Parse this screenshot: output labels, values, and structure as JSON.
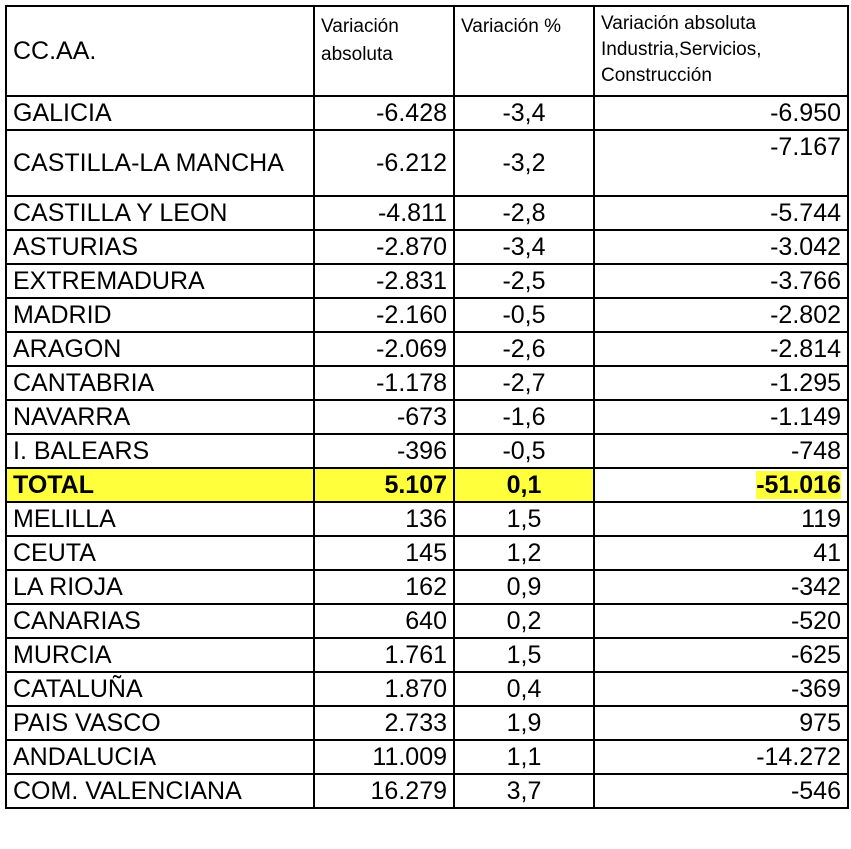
{
  "headers": {
    "region": "CC.AA.",
    "abs": "Variación absoluta",
    "pct": "Variación %",
    "ind": "Variación absoluta Industria,Servicios, Construcción"
  },
  "rows": [
    {
      "region": "GALICIA",
      "abs": "-6.428",
      "pct": "-3,4",
      "ind": "-6.950"
    },
    {
      "region": "CASTILLA-LA MANCHA",
      "abs": "-6.212",
      "pct": "-3,2",
      "ind": "-7.167"
    },
    {
      "region": "CASTILLA Y LEON",
      "abs": "-4.811",
      "pct": "-2,8",
      "ind": "-5.744"
    },
    {
      "region": "ASTURIAS",
      "abs": "-2.870",
      "pct": "-3,4",
      "ind": "-3.042"
    },
    {
      "region": "EXTREMADURA",
      "abs": "-2.831",
      "pct": "-2,5",
      "ind": "-3.766"
    },
    {
      "region": "MADRID",
      "abs": "-2.160",
      "pct": "-0,5",
      "ind": "-2.802"
    },
    {
      "region": "ARAGON",
      "abs": "-2.069",
      "pct": "-2,6",
      "ind": "-2.814"
    },
    {
      "region": "CANTABRIA",
      "abs": "-1.178",
      "pct": "-2,7",
      "ind": "-1.295"
    },
    {
      "region": "NAVARRA",
      "abs": "-673",
      "pct": "-1,6",
      "ind": "-1.149"
    },
    {
      "region": "I. BALEARS",
      "abs": "-396",
      "pct": "-0,5",
      "ind": "-748"
    },
    {
      "region": "TOTAL",
      "abs": "5.107",
      "pct": "0,1",
      "ind": "-51.016"
    },
    {
      "region": "MELILLA",
      "abs": "136",
      "pct": "1,5",
      "ind": "119"
    },
    {
      "region": "CEUTA",
      "abs": "145",
      "pct": "1,2",
      "ind": "41"
    },
    {
      "region": "LA RIOJA",
      "abs": "162",
      "pct": "0,9",
      "ind": "-342"
    },
    {
      "region": "CANARIAS",
      "abs": "640",
      "pct": "0,2",
      "ind": "-520"
    },
    {
      "region": "MURCIA",
      "abs": "1.761",
      "pct": "1,5",
      "ind": "-625"
    },
    {
      "region": "CATALUÑA",
      "abs": "1.870",
      "pct": "0,4",
      "ind": "-369"
    },
    {
      "region": "PAIS VASCO",
      "abs": "2.733",
      "pct": "1,9",
      "ind": "975"
    },
    {
      "region": "ANDALUCIA",
      "abs": "11.009",
      "pct": "1,1",
      "ind": "-14.272"
    },
    {
      "region": "COM. VALENCIANA",
      "abs": "16.279",
      "pct": "3,7",
      "ind": "-546"
    }
  ],
  "colors": {
    "highlight": "#ffff3b",
    "border": "#000000"
  }
}
